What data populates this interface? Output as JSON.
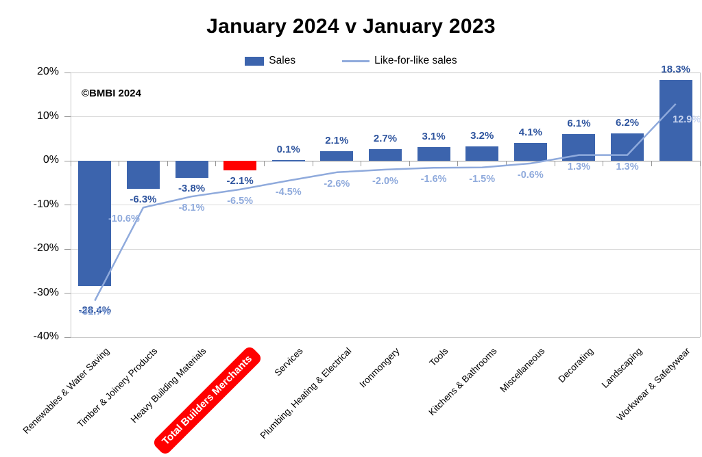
{
  "title": "January 2024 v January 2023",
  "copyright": "©BMBI 2024",
  "legend": [
    {
      "label": "Sales",
      "swatch": "bar-swatch-icon"
    },
    {
      "label": "Like-for-like sales",
      "swatch": "line-swatch-icon"
    }
  ],
  "colors": {
    "bar": "#3c64ad",
    "bar_highlight": "#ff0000",
    "line": "#8faadc",
    "sales_label": "#2e549e",
    "line_label": "#8faadc",
    "line_label_on_bar": "#c9d5f0",
    "gridline": "#d9d9d9",
    "axis_border": "#c6c6c6",
    "zero_axis": "#969696",
    "highlight_text": "#ffffff"
  },
  "chart_data": {
    "type": "bar",
    "subtype": "bar-with-line-overlay",
    "title": "January 2024 v January 2023",
    "xlabel": "",
    "ylabel": "",
    "ylim": [
      -40,
      20
    ],
    "ytick_step": 10,
    "yticks": [
      "20%",
      "10%",
      "0%",
      "-10%",
      "-20%",
      "-30%",
      "-40%"
    ],
    "grid": true,
    "legend_position": "top",
    "value_label_format": "0.0%",
    "categories": [
      "Renewables & Water Saving",
      "Timber & Joinery Products",
      "Heavy Building Materials",
      "Total Builders Merchants",
      "Services",
      "Plumbing, Heating & Electrical",
      "Ironmongery",
      "Tools",
      "Kitchens & Bathrooms",
      "Miscellaneous",
      "Decorating",
      "Landscaping",
      "Workwear & Safetywear"
    ],
    "series": [
      {
        "name": "Sales",
        "chart_type": "bar",
        "values": [
          -28.4,
          -6.3,
          -3.8,
          -2.1,
          0.1,
          2.1,
          2.7,
          3.1,
          3.2,
          4.1,
          6.1,
          6.2,
          18.3
        ]
      },
      {
        "name": "Like-for-like sales",
        "chart_type": "line",
        "values": [
          -31.7,
          -10.6,
          -8.1,
          -6.5,
          -4.5,
          -2.6,
          -2.0,
          -1.6,
          -1.5,
          -0.6,
          1.3,
          1.3,
          12.9
        ]
      }
    ],
    "highlight": {
      "category": "Total Builders Merchants",
      "index": 3
    }
  }
}
